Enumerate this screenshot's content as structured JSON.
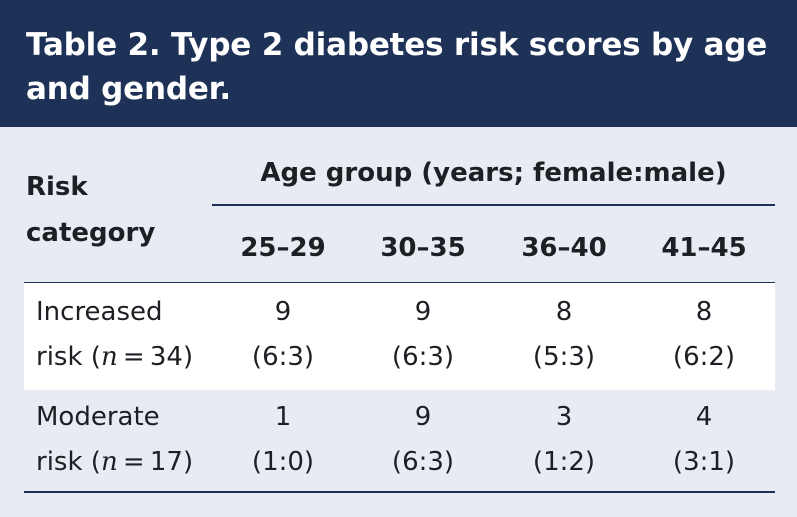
{
  "table": {
    "title": "Table 2. Type 2 diabetes risk scores by age and gender.",
    "risk_header": [
      "Risk",
      "category"
    ],
    "group_header": "Age group (years; female:male)",
    "age_columns": [
      "25–29",
      "30–35",
      "36–40",
      "41–45"
    ],
    "rows": [
      {
        "label_line1": "Increased",
        "label_prefix": "risk (",
        "label_var": "n",
        "label_suffix": " = 34)",
        "counts": [
          "9",
          "9",
          "8",
          "8"
        ],
        "ratios": [
          "(6:3)",
          "(6:3)",
          "(5:3)",
          "(6:2)"
        ]
      },
      {
        "label_line1": "Moderate",
        "label_prefix": "risk (",
        "label_var": "n",
        "label_suffix": " = 17)",
        "counts": [
          "1",
          "9",
          "3",
          "4"
        ],
        "ratios": [
          "(1:0)",
          "(6:3)",
          "(1:2)",
          "(3:1)"
        ]
      }
    ]
  }
}
